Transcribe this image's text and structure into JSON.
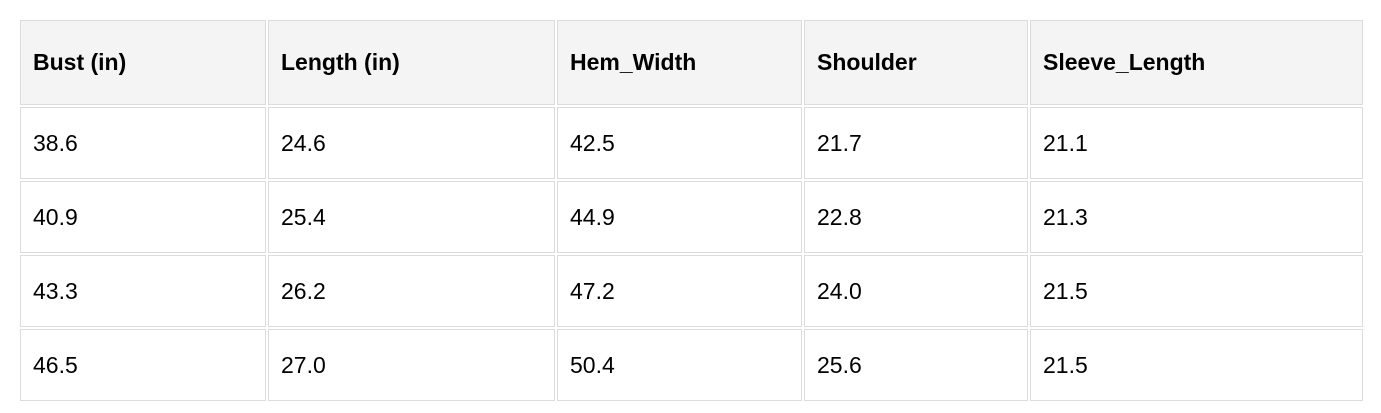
{
  "table": {
    "headers": [
      "Bust (in)",
      "Length (in)",
      "Hem_Width",
      "Shoulder",
      "Sleeve_Length"
    ],
    "rows": [
      [
        "38.6",
        "24.6",
        "42.5",
        "21.7",
        "21.1"
      ],
      [
        "40.9",
        "25.4",
        "44.9",
        "22.8",
        "21.3"
      ],
      [
        "43.3",
        "26.2",
        "47.2",
        "24.0",
        "21.5"
      ],
      [
        "46.5",
        "27.0",
        "50.4",
        "25.6",
        "21.5"
      ]
    ]
  }
}
